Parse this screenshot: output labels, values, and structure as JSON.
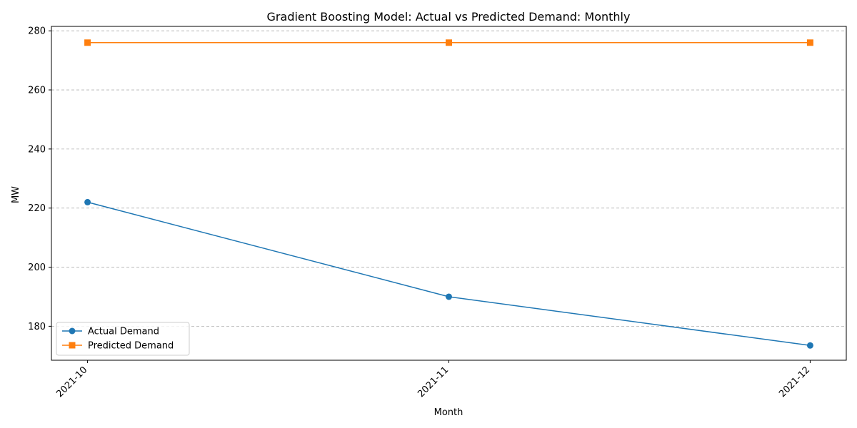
{
  "chart_data": {
    "type": "line",
    "title": "Gradient Boosting Model: Actual vs Predicted Demand: Monthly",
    "xlabel": "Month",
    "ylabel": "MW",
    "categories": [
      "2021-10",
      "2021-11",
      "2021-12"
    ],
    "series": [
      {
        "name": "Actual Demand",
        "values": [
          222,
          190,
          173.5
        ],
        "color": "#1f77b4",
        "marker": "circle"
      },
      {
        "name": "Predicted Demand",
        "values": [
          276,
          276,
          276
        ],
        "color": "#ff7f0e",
        "marker": "square"
      }
    ],
    "ylim": [
      168.5,
      281.5
    ],
    "yticks": [
      180,
      200,
      220,
      240,
      260,
      280
    ],
    "grid": "y-dashed",
    "legend_position": "lower-left",
    "xtick_rotation": 45
  }
}
